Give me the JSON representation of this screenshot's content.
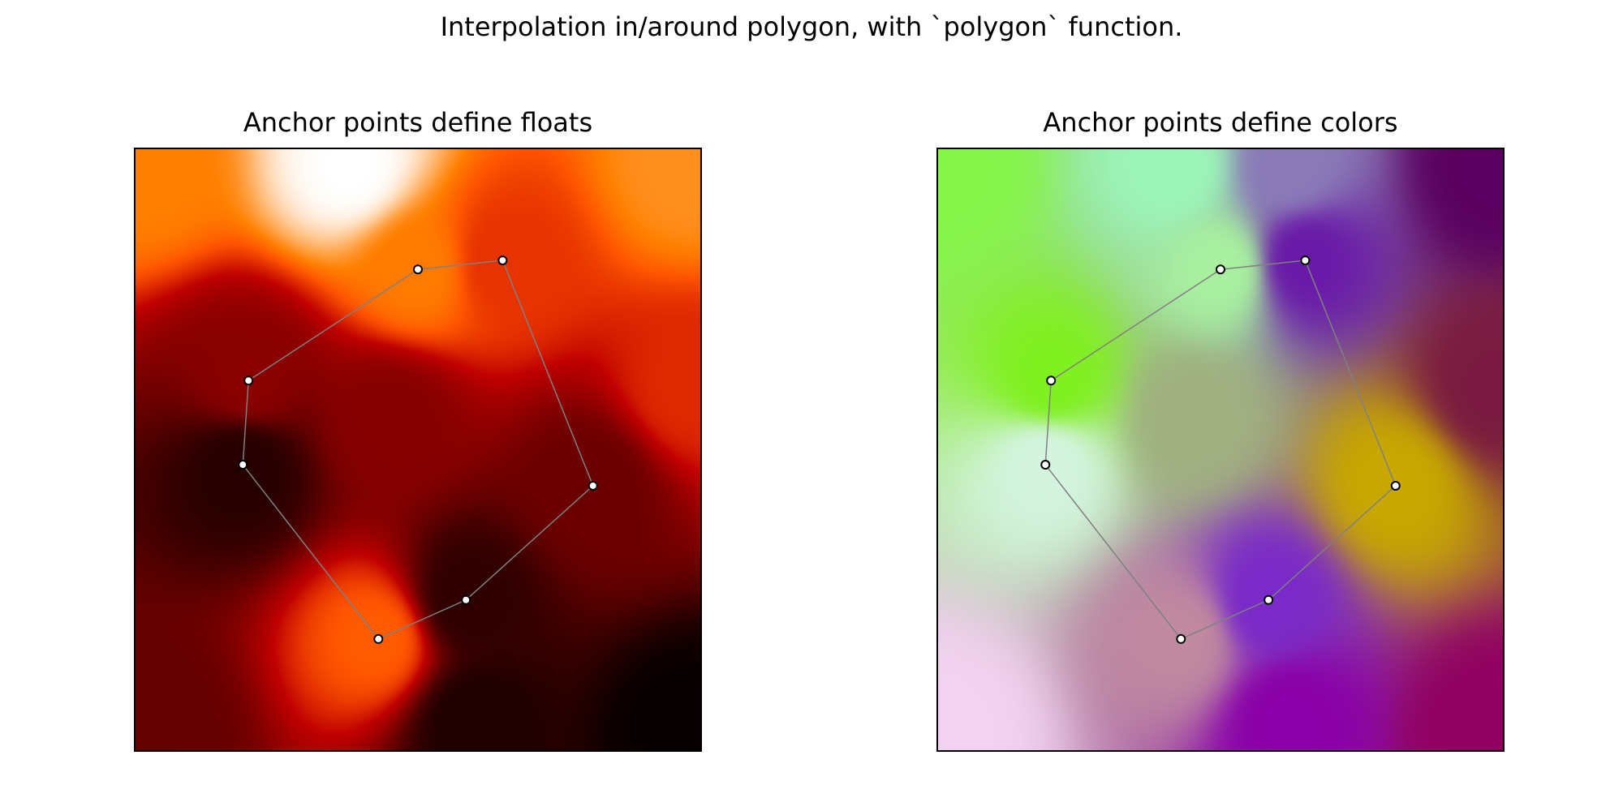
{
  "figure": {
    "title": "Interpolation in/around polygon, with `polygon` function."
  },
  "chart_data": [
    {
      "type": "heatmap",
      "title": "Anchor points define floats",
      "xlabel": "",
      "ylabel": "",
      "colormap": "gist_heat",
      "grid": false,
      "xlim": [
        0,
        1
      ],
      "ylim": [
        0,
        1
      ],
      "anchors": [
        {
          "x": 0.5,
          "y": 0.8,
          "value": 0.74
        },
        {
          "x": 0.65,
          "y": 0.815,
          "value": 0.6
        },
        {
          "x": 0.81,
          "y": 0.44,
          "value": 0.28
        },
        {
          "x": 0.585,
          "y": 0.25,
          "value": 0.12
        },
        {
          "x": 0.43,
          "y": 0.185,
          "value": 0.68
        },
        {
          "x": 0.19,
          "y": 0.475,
          "value": 0.1
        },
        {
          "x": 0.2,
          "y": 0.615,
          "value": 0.36
        }
      ],
      "field_points": [
        {
          "x": 0.38,
          "y": 0.97,
          "value": 1.0
        },
        {
          "x": 0.02,
          "y": 0.97,
          "value": 0.75
        },
        {
          "x": 0.98,
          "y": 0.97,
          "value": 0.78
        },
        {
          "x": 0.98,
          "y": 0.6,
          "value": 0.58
        },
        {
          "x": 0.98,
          "y": 0.03,
          "value": 0.02
        },
        {
          "x": 0.02,
          "y": 0.03,
          "value": 0.26
        },
        {
          "x": 0.6,
          "y": 0.05,
          "value": 0.08
        },
        {
          "x": 0.45,
          "y": 0.55,
          "value": 0.35
        }
      ]
    },
    {
      "type": "heatmap",
      "title": "Anchor points define colors",
      "xlabel": "",
      "ylabel": "",
      "grid": false,
      "xlim": [
        0,
        1
      ],
      "ylim": [
        0,
        1
      ],
      "anchors": [
        {
          "x": 0.5,
          "y": 0.8,
          "color": "#a8f0a0"
        },
        {
          "x": 0.65,
          "y": 0.815,
          "color": "#6a1aa8"
        },
        {
          "x": 0.81,
          "y": 0.44,
          "color": "#c8a800"
        },
        {
          "x": 0.585,
          "y": 0.25,
          "color": "#7a2ac8"
        },
        {
          "x": 0.43,
          "y": 0.185,
          "color": "#c08aa0"
        },
        {
          "x": 0.19,
          "y": 0.475,
          "color": "#d4f4e0"
        },
        {
          "x": 0.2,
          "y": 0.615,
          "color": "#80f020"
        }
      ],
      "field_points": [
        {
          "x": 0.02,
          "y": 0.97,
          "color": "#86f54a"
        },
        {
          "x": 0.42,
          "y": 0.97,
          "color": "#9cf5b8"
        },
        {
          "x": 0.62,
          "y": 0.97,
          "color": "#8a7ab8"
        },
        {
          "x": 0.98,
          "y": 0.97,
          "color": "#5a0060"
        },
        {
          "x": 0.98,
          "y": 0.6,
          "color": "#7a1a40"
        },
        {
          "x": 0.98,
          "y": 0.03,
          "color": "#900060"
        },
        {
          "x": 0.02,
          "y": 0.03,
          "color": "#f2d2f0"
        },
        {
          "x": 0.62,
          "y": 0.05,
          "color": "#8a00a8"
        },
        {
          "x": 0.45,
          "y": 0.55,
          "color": "#a0b080"
        }
      ]
    }
  ],
  "style": {
    "polygon_color": "#808080",
    "marker_edge": "#000000",
    "marker_face": "#ffffff"
  }
}
